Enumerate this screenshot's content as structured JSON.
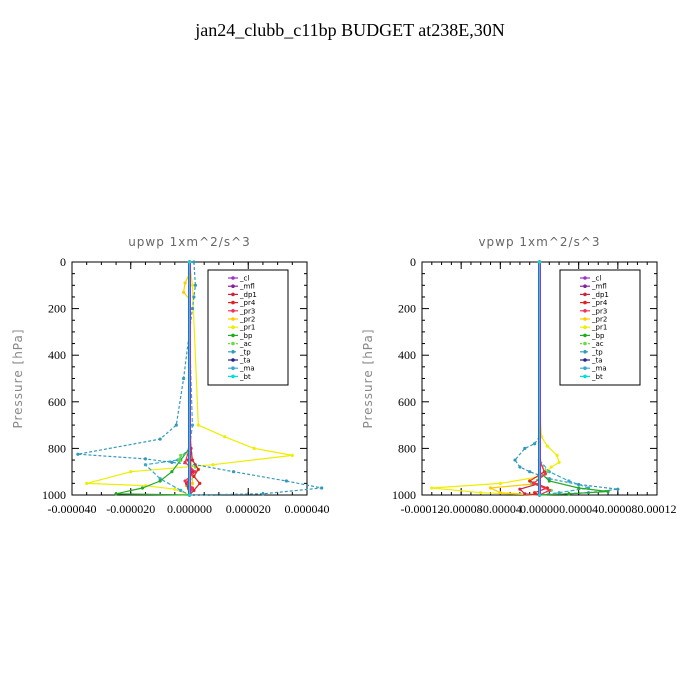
{
  "page_title": "jan24_clubb_c11bp  BUDGET at238E,30N",
  "legend_labels": [
    "_cl",
    "_mfl",
    "_dp1",
    "_pr4",
    "_pr3",
    "_pr2",
    "_pr1",
    "_bp",
    "_ac",
    "_tp",
    "_ta",
    "_ma",
    "_bt"
  ],
  "colors": {
    "_cl": "#9933cc",
    "_mfl": "#882299",
    "_dp1": "#cc2244",
    "_pr4": "#dd2222",
    "_pr3": "#ee3355",
    "_pr2": "#ffcc00",
    "_pr1": "#eeee00",
    "_bp": "#22aa22",
    "_ac": "#66dd44",
    "_tp": "#3399bb",
    "_ta": "#222288",
    "_ma": "#33aacc",
    "_bt": "#00dddd"
  },
  "chart_data": [
    {
      "type": "line",
      "title": "upwp   1xm^2/s^3",
      "ylabel": "Pressure  [hPa]",
      "ylim": [
        1000,
        0
      ],
      "y_ticks": [
        0,
        200,
        400,
        600,
        800,
        1000
      ],
      "y_tick_labels": [
        "0",
        "200",
        "400",
        "600",
        "800",
        "1000"
      ],
      "xlim": [
        -4e-05,
        4e-05
      ],
      "x_ticks": [
        -4e-05,
        -2e-05,
        0,
        2e-05,
        4e-05
      ],
      "x_tick_labels": [
        "-0.000040",
        "-0.000020",
        "0.000000",
        "0.000020",
        "0.000040"
      ],
      "series": [
        {
          "name": "_pr1",
          "x": [
            0,
            1e-06,
            3e-06,
            1.2e-05,
            2.2e-05,
            3.5e-05,
            8e-06,
            -2e-05,
            -3.5e-05,
            -1.5e-05,
            -5e-06,
            0
          ],
          "y": [
            0,
            100,
            700,
            750,
            800,
            830,
            870,
            900,
            950,
            960,
            975,
            1000
          ]
        },
        {
          "name": "_pr2",
          "x": [
            0,
            0,
            -1.5e-06,
            -2e-06,
            0,
            0,
            5e-07,
            1e-06,
            0
          ],
          "y": [
            0,
            50,
            90,
            130,
            160,
            600,
            800,
            950,
            1000
          ]
        },
        {
          "name": "_tp",
          "x": [
            1.5e-06,
            2e-06,
            1.5e-06,
            1e-06,
            0,
            -2e-06,
            -4.5e-06,
            -1e-05,
            -3.8e-05,
            -1.5e-05,
            -6e-06,
            2e-06,
            1.5e-05,
            3.3e-05,
            4.5e-05,
            2.5e-05,
            0
          ],
          "y": [
            0,
            100,
            150,
            200,
            300,
            500,
            700,
            760,
            825,
            845,
            860,
            870,
            900,
            940,
            970,
            995,
            1000
          ]
        },
        {
          "name": "_ma",
          "x": [
            0,
            0,
            1e-06,
            0,
            -4e-06,
            -1.5e-05,
            -1e-05,
            -3e-06,
            0
          ],
          "y": [
            0,
            300,
            700,
            800,
            850,
            870,
            930,
            980,
            1000
          ]
        },
        {
          "name": "_bp",
          "x": [
            0,
            0,
            -3e-06,
            -6e-06,
            -1e-05,
            -1.6e-05,
            -2.5e-05,
            0
          ],
          "y": [
            0,
            800,
            850,
            900,
            940,
            970,
            995,
            1000
          ]
        },
        {
          "name": "_ac",
          "x": [
            0,
            0,
            5e-07,
            -3e-06,
            -3.5e-06,
            2e-06,
            1.5e-06,
            -1e-06,
            0
          ],
          "y": [
            0,
            800,
            820,
            830,
            850,
            880,
            920,
            960,
            1000
          ]
        },
        {
          "name": "_dp1",
          "x": [
            0,
            0,
            5e-07,
            -5e-07,
            1e-06,
            -1e-06,
            0
          ],
          "y": [
            0,
            700,
            800,
            850,
            900,
            950,
            1000
          ]
        },
        {
          "name": "_pr4",
          "x": [
            0,
            0,
            1e-06,
            3e-06,
            1.5e-06,
            3.5e-06,
            1.5e-06,
            0
          ],
          "y": [
            0,
            750,
            850,
            890,
            920,
            950,
            980,
            1000
          ]
        },
        {
          "name": "_pr3",
          "x": [
            0,
            0,
            -1.5e-06,
            2e-06,
            -1.5e-06,
            1e-06,
            0
          ],
          "y": [
            0,
            800,
            860,
            900,
            940,
            970,
            1000
          ]
        },
        {
          "name": "_mfl",
          "x": [
            0,
            0
          ],
          "y": [
            0,
            1000
          ]
        },
        {
          "name": "_cl",
          "x": [
            0,
            0
          ],
          "y": [
            0,
            1000
          ]
        },
        {
          "name": "_ta",
          "x": [
            0,
            0
          ],
          "y": [
            0,
            1000
          ]
        },
        {
          "name": "_bt",
          "x": [
            0,
            0
          ],
          "y": [
            0,
            1000
          ]
        }
      ]
    },
    {
      "type": "line",
      "title": "vpwp   1xm^2/s^3",
      "ylabel": "Pressure  [hPa]",
      "ylim": [
        1000,
        0
      ],
      "y_ticks": [
        0,
        200,
        400,
        600,
        800,
        1000
      ],
      "y_tick_labels": [
        "0",
        "200",
        "400",
        "600",
        "800",
        "1000"
      ],
      "xlim": [
        -0.00012,
        0.00012
      ],
      "x_ticks": [
        -0.00012,
        -8e-05,
        -4e-05,
        0,
        4e-05,
        8e-05,
        0.00012
      ],
      "x_tick_labels": [
        "-0.00012",
        "-0.00008",
        "-0.00004",
        "0.00000",
        "0.00004",
        "0.00008",
        "0.00012"
      ],
      "series": [
        {
          "name": "_pr1",
          "x": [
            0,
            0,
            2e-06,
            8e-06,
            1.8e-05,
            2e-05,
            1.2e-05,
            2e-06,
            -4e-05,
            -0.00011,
            -6e-05,
            0
          ],
          "y": [
            0,
            600,
            750,
            790,
            830,
            860,
            880,
            920,
            950,
            970,
            990,
            1000
          ]
        },
        {
          "name": "_pr2",
          "x": [
            0,
            0,
            -5e-05,
            -4e-05,
            0
          ],
          "y": [
            0,
            950,
            970,
            990,
            1000
          ]
        },
        {
          "name": "_tp",
          "x": [
            0,
            0,
            -5e-06,
            -1.5e-05,
            -2.5e-05,
            -2e-05,
            -1e-05,
            1e-05,
            4e-05,
            8e-05,
            5e-05,
            0
          ],
          "y": [
            0,
            750,
            780,
            800,
            850,
            880,
            900,
            930,
            955,
            975,
            990,
            1000
          ]
        },
        {
          "name": "_ma",
          "x": [
            0,
            0,
            1e-05,
            3e-05,
            5e-05,
            2e-05,
            0
          ],
          "y": [
            0,
            850,
            900,
            940,
            970,
            990,
            1000
          ]
        },
        {
          "name": "_bp",
          "x": [
            0,
            0,
            1e-05,
            4e-05,
            7e-05,
            3e-05,
            0
          ],
          "y": [
            0,
            900,
            940,
            970,
            985,
            995,
            1000
          ]
        },
        {
          "name": "_ac",
          "x": [
            0,
            0,
            8e-06,
            -8e-06,
            1.2e-05,
            0
          ],
          "y": [
            0,
            850,
            900,
            950,
            980,
            1000
          ]
        },
        {
          "name": "_dp1",
          "x": [
            0,
            0,
            -2e-05,
            -1.5e-05,
            0
          ],
          "y": [
            0,
            950,
            975,
            995,
            1000
          ]
        },
        {
          "name": "_pr4",
          "x": [
            0,
            0,
            5e-06,
            -1e-05,
            8e-06,
            -5e-06,
            0
          ],
          "y": [
            0,
            850,
            900,
            940,
            970,
            990,
            1000
          ]
        },
        {
          "name": "_pr3",
          "x": [
            0,
            0,
            6e-06,
            -6e-06,
            1e-05,
            0
          ],
          "y": [
            0,
            850,
            910,
            950,
            980,
            1000
          ]
        },
        {
          "name": "_mfl",
          "x": [
            0,
            0
          ],
          "y": [
            0,
            1000
          ]
        },
        {
          "name": "_cl",
          "x": [
            0,
            0
          ],
          "y": [
            0,
            1000
          ]
        },
        {
          "name": "_ta",
          "x": [
            0,
            0
          ],
          "y": [
            0,
            1000
          ]
        },
        {
          "name": "_bt",
          "x": [
            0,
            0
          ],
          "y": [
            0,
            1000
          ]
        }
      ]
    }
  ]
}
